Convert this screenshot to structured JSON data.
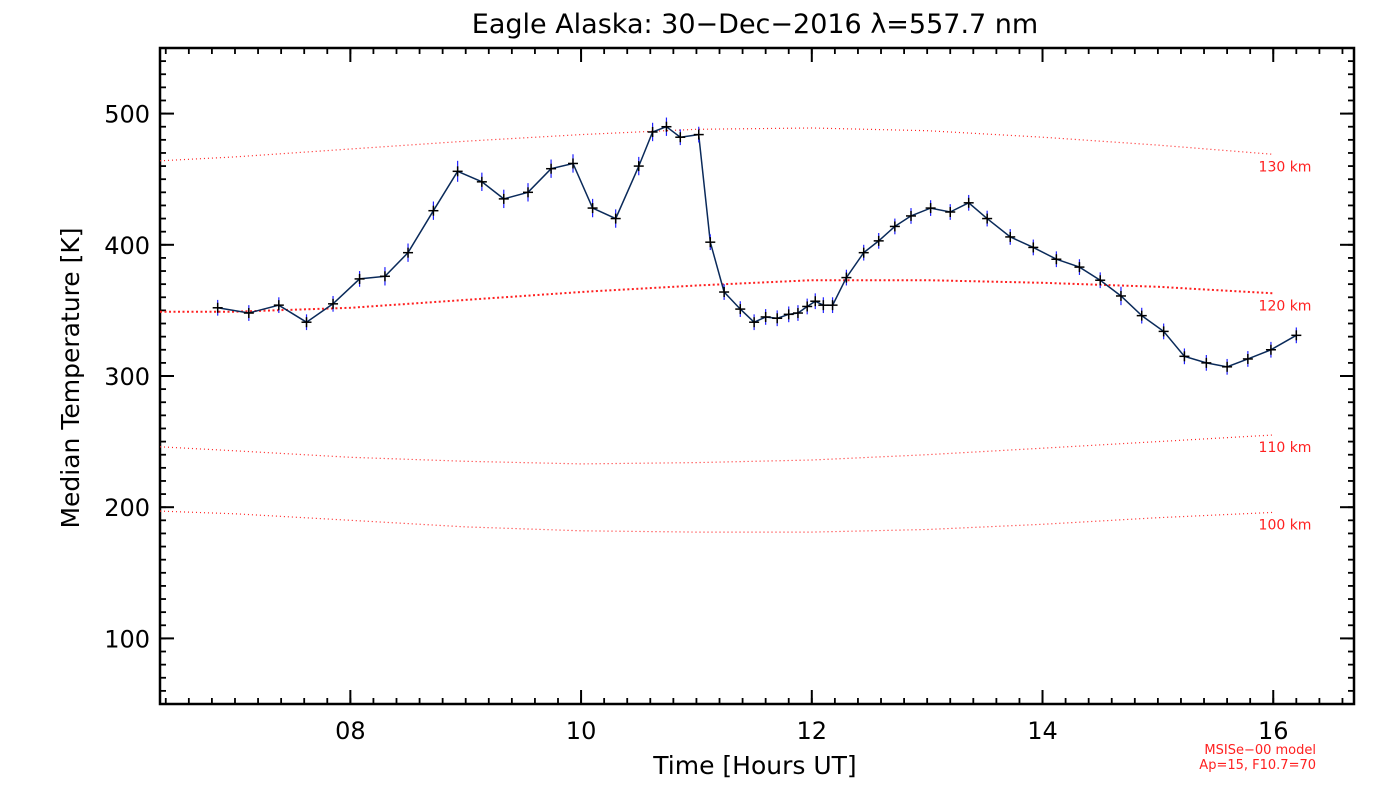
{
  "chart_data": {
    "type": "line",
    "title": "Eagle Alaska: 30−Dec−2016 λ=557.7 nm",
    "xlabel": "Time [Hours UT]",
    "ylabel": "Median Temperature [K]",
    "xlim": [
      6.35,
      16.7
    ],
    "ylim": [
      50,
      550
    ],
    "x_ticks": [
      8,
      10,
      12,
      14,
      16
    ],
    "x_tick_labels": [
      "08",
      "10",
      "12",
      "14",
      "16"
    ],
    "y_ticks": [
      100,
      200,
      300,
      400,
      500
    ],
    "y_tick_labels": [
      "100",
      "200",
      "300",
      "400",
      "500"
    ],
    "grid": false,
    "series": [
      {
        "color": "#0a2a5a",
        "error_color": "#2020ff",
        "marker": "plus",
        "x": [
          6.85,
          7.12,
          7.38,
          7.62,
          7.85,
          8.08,
          8.3,
          8.5,
          8.72,
          8.93,
          9.14,
          9.33,
          9.54,
          9.74,
          9.93,
          10.1,
          10.3,
          10.5,
          10.62,
          10.74,
          10.86,
          11.02,
          11.12,
          11.24,
          11.38,
          11.5,
          11.6,
          11.7,
          11.8,
          11.88,
          11.96,
          12.03,
          12.1,
          12.18,
          12.3,
          12.45,
          12.58,
          12.72,
          12.86,
          13.03,
          13.2,
          13.36,
          13.52,
          13.72,
          13.92,
          14.12,
          14.32,
          14.5,
          14.68,
          14.86,
          15.05,
          15.23,
          15.42,
          15.6,
          15.78,
          15.98,
          16.2
        ],
        "y": [
          352,
          348,
          354,
          341,
          355,
          374,
          376,
          394,
          426,
          456,
          448,
          435,
          440,
          458,
          462,
          428,
          420,
          460,
          486,
          490,
          482,
          484,
          402,
          364,
          351,
          341,
          345,
          344,
          347,
          348,
          353,
          357,
          354,
          354,
          375,
          394,
          403,
          414,
          422,
          428,
          425,
          432,
          420,
          406,
          398,
          389,
          383,
          373,
          361,
          346,
          334,
          315,
          310,
          307,
          313,
          320,
          331
        ],
        "error": [
          6,
          6,
          6,
          6,
          6,
          6,
          7,
          7,
          7,
          8,
          7,
          7,
          7,
          7,
          7,
          7,
          7,
          7,
          7,
          7,
          6,
          6,
          6,
          6,
          6,
          6,
          6,
          6,
          6,
          6,
          6,
          6,
          6,
          6,
          6,
          6,
          6,
          6,
          6,
          6,
          6,
          6,
          6,
          6,
          6,
          6,
          6,
          6,
          7,
          6,
          6,
          6,
          6,
          6,
          6,
          6,
          6
        ]
      }
    ],
    "model_curves": [
      {
        "label": "130 km",
        "color": "#ff2020",
        "x": [
          6.35,
          7,
          8,
          9,
          10,
          11,
          12,
          13,
          14,
          15,
          16
        ],
        "y": [
          464,
          467,
          473,
          479,
          484,
          488,
          489,
          487,
          482,
          476,
          469
        ]
      },
      {
        "label": "120 km",
        "color": "#ff2020",
        "x": [
          6.35,
          7,
          8,
          9,
          10,
          11,
          12,
          13,
          14,
          15,
          16
        ],
        "y": [
          349,
          349,
          352,
          358,
          364,
          369,
          373,
          373,
          371,
          368,
          363
        ]
      },
      {
        "label": "110 km",
        "color": "#ff2020",
        "x": [
          6.35,
          7,
          8,
          9,
          10,
          11,
          12,
          13,
          14,
          15,
          16
        ],
        "y": [
          246,
          243,
          238,
          235,
          233,
          234,
          236,
          240,
          245,
          250,
          255
        ]
      },
      {
        "label": "100 km",
        "color": "#ff2020",
        "x": [
          6.35,
          7,
          8,
          9,
          10,
          11,
          12,
          13,
          14,
          15,
          16
        ],
        "y": [
          197,
          195,
          190,
          185,
          182,
          181,
          181,
          183,
          187,
          192,
          196
        ]
      }
    ],
    "annotations": [
      "MSISe−00 model",
      "Ap=15, F10.7=70"
    ]
  }
}
